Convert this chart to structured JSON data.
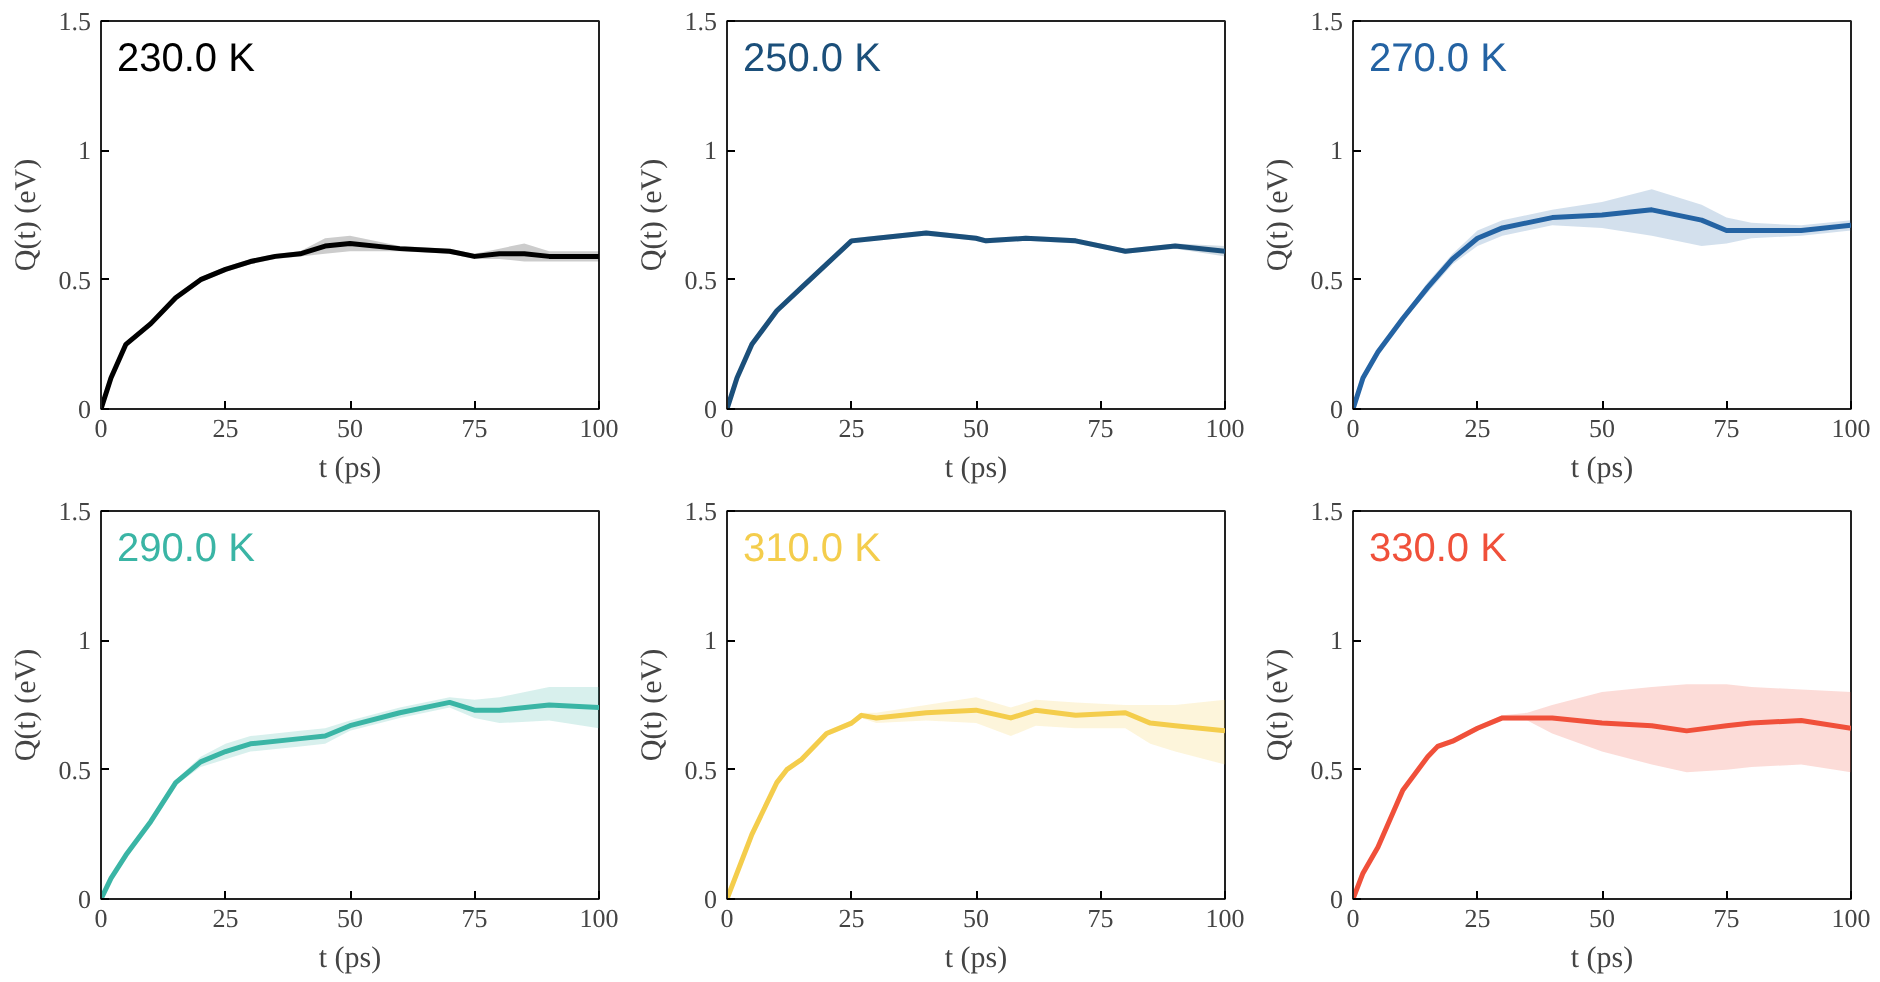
{
  "chart_data": [
    {
      "type": "line",
      "xlabel": "t (ps)",
      "ylabel": "Q(t) (eV)",
      "xlim": [
        0,
        100
      ],
      "ylim": [
        0,
        1.5
      ],
      "xticks": [
        0,
        25,
        50,
        75,
        100
      ],
      "yticks": [
        0,
        0.5,
        1,
        1.5
      ],
      "grid": false,
      "x": [
        0,
        2,
        5,
        10,
        15,
        20,
        25,
        30,
        35,
        40,
        45,
        50,
        60,
        70,
        75,
        80,
        85,
        90,
        100
      ],
      "series": [
        {
          "name": "230.0 K",
          "color": "#000000",
          "values": [
            0,
            0.12,
            0.25,
            0.33,
            0.43,
            0.5,
            0.54,
            0.57,
            0.59,
            0.6,
            0.63,
            0.64,
            0.62,
            0.61,
            0.59,
            0.6,
            0.6,
            0.59,
            0.59
          ],
          "lower": [
            0,
            0.11,
            0.24,
            0.32,
            0.42,
            0.49,
            0.53,
            0.56,
            0.58,
            0.59,
            0.6,
            0.61,
            0.61,
            0.6,
            0.58,
            0.58,
            0.57,
            0.57,
            0.57
          ],
          "upper": [
            0,
            0.13,
            0.26,
            0.34,
            0.44,
            0.51,
            0.55,
            0.58,
            0.6,
            0.61,
            0.66,
            0.67,
            0.63,
            0.62,
            0.6,
            0.62,
            0.64,
            0.61,
            0.61
          ]
        }
      ]
    },
    {
      "type": "line",
      "xlabel": "t (ps)",
      "ylabel": "Q(t) (eV)",
      "xlim": [
        0,
        100
      ],
      "ylim": [
        0,
        1.5
      ],
      "xticks": [
        0,
        25,
        50,
        75,
        100
      ],
      "yticks": [
        0,
        0.5,
        1,
        1.5
      ],
      "grid": false,
      "x": [
        0,
        2,
        5,
        10,
        15,
        20,
        25,
        30,
        40,
        50,
        52,
        60,
        70,
        80,
        90,
        100
      ],
      "series": [
        {
          "name": "250.0 K",
          "color": "#1b4f7a",
          "values": [
            0,
            0.12,
            0.25,
            0.38,
            0.47,
            0.56,
            0.65,
            0.66,
            0.68,
            0.66,
            0.65,
            0.66,
            0.65,
            0.61,
            0.63,
            0.61
          ],
          "lower": [
            0,
            0.11,
            0.24,
            0.37,
            0.46,
            0.55,
            0.64,
            0.65,
            0.67,
            0.65,
            0.64,
            0.65,
            0.64,
            0.6,
            0.62,
            0.59
          ],
          "upper": [
            0,
            0.13,
            0.26,
            0.39,
            0.48,
            0.57,
            0.66,
            0.67,
            0.69,
            0.67,
            0.66,
            0.67,
            0.66,
            0.62,
            0.64,
            0.63
          ]
        }
      ]
    },
    {
      "type": "line",
      "xlabel": "t (ps)",
      "ylabel": "Q(t) (eV)",
      "xlim": [
        0,
        100
      ],
      "ylim": [
        0,
        1.5
      ],
      "xticks": [
        0,
        25,
        50,
        75,
        100
      ],
      "yticks": [
        0,
        0.5,
        1,
        1.5
      ],
      "grid": false,
      "x": [
        0,
        2,
        5,
        10,
        15,
        20,
        25,
        30,
        40,
        50,
        60,
        70,
        75,
        80,
        90,
        100
      ],
      "series": [
        {
          "name": "270.0 K",
          "color": "#2463a3",
          "values": [
            0,
            0.12,
            0.22,
            0.35,
            0.47,
            0.58,
            0.66,
            0.7,
            0.74,
            0.75,
            0.77,
            0.73,
            0.69,
            0.69,
            0.69,
            0.71
          ],
          "lower": [
            0,
            0.11,
            0.21,
            0.34,
            0.45,
            0.56,
            0.63,
            0.67,
            0.71,
            0.7,
            0.67,
            0.63,
            0.64,
            0.66,
            0.67,
            0.69
          ],
          "upper": [
            0,
            0.13,
            0.23,
            0.36,
            0.49,
            0.6,
            0.69,
            0.73,
            0.77,
            0.8,
            0.85,
            0.79,
            0.74,
            0.72,
            0.71,
            0.73
          ]
        }
      ]
    },
    {
      "type": "line",
      "xlabel": "t (ps)",
      "ylabel": "Q(t) (eV)",
      "xlim": [
        0,
        100
      ],
      "ylim": [
        0,
        1.5
      ],
      "xticks": [
        0,
        25,
        50,
        75,
        100
      ],
      "yticks": [
        0,
        0.5,
        1,
        1.5
      ],
      "grid": false,
      "x": [
        0,
        2,
        5,
        10,
        15,
        20,
        25,
        30,
        40,
        45,
        50,
        60,
        70,
        75,
        80,
        90,
        100
      ],
      "series": [
        {
          "name": "290.0 K",
          "color": "#3ab5a5",
          "values": [
            0,
            0.08,
            0.17,
            0.3,
            0.45,
            0.53,
            0.57,
            0.6,
            0.62,
            0.63,
            0.67,
            0.72,
            0.76,
            0.73,
            0.73,
            0.75,
            0.74
          ],
          "lower": [
            0,
            0.07,
            0.16,
            0.29,
            0.44,
            0.51,
            0.54,
            0.57,
            0.59,
            0.6,
            0.65,
            0.7,
            0.74,
            0.7,
            0.68,
            0.69,
            0.66
          ],
          "upper": [
            0,
            0.09,
            0.18,
            0.31,
            0.46,
            0.55,
            0.6,
            0.63,
            0.65,
            0.66,
            0.69,
            0.74,
            0.78,
            0.77,
            0.78,
            0.82,
            0.82
          ]
        }
      ]
    },
    {
      "type": "line",
      "xlabel": "t (ps)",
      "ylabel": "Q(t) (eV)",
      "xlim": [
        0,
        100
      ],
      "ylim": [
        0,
        1.5
      ],
      "xticks": [
        0,
        25,
        50,
        75,
        100
      ],
      "yticks": [
        0,
        0.5,
        1,
        1.5
      ],
      "grid": false,
      "x": [
        0,
        2,
        5,
        10,
        12,
        15,
        20,
        25,
        27,
        30,
        40,
        50,
        57,
        62,
        70,
        80,
        85,
        90,
        100
      ],
      "series": [
        {
          "name": "310.0 K",
          "color": "#f4cd4c",
          "values": [
            0,
            0.1,
            0.25,
            0.45,
            0.5,
            0.54,
            0.64,
            0.68,
            0.71,
            0.7,
            0.72,
            0.73,
            0.7,
            0.73,
            0.71,
            0.72,
            0.68,
            0.67,
            0.65
          ],
          "lower": [
            0,
            0.09,
            0.24,
            0.44,
            0.49,
            0.53,
            0.63,
            0.67,
            0.7,
            0.68,
            0.69,
            0.68,
            0.63,
            0.67,
            0.66,
            0.66,
            0.6,
            0.57,
            0.52
          ],
          "upper": [
            0,
            0.11,
            0.26,
            0.46,
            0.51,
            0.55,
            0.65,
            0.69,
            0.72,
            0.72,
            0.75,
            0.78,
            0.74,
            0.77,
            0.76,
            0.75,
            0.75,
            0.75,
            0.77
          ]
        }
      ]
    },
    {
      "type": "line",
      "xlabel": "t (ps)",
      "ylabel": "Q(t) (eV)",
      "xlim": [
        0,
        100
      ],
      "ylim": [
        0,
        1.5
      ],
      "xticks": [
        0,
        25,
        50,
        75,
        100
      ],
      "yticks": [
        0,
        0.5,
        1,
        1.5
      ],
      "grid": false,
      "x": [
        0,
        2,
        5,
        10,
        15,
        17,
        20,
        25,
        30,
        35,
        40,
        50,
        60,
        67,
        75,
        80,
        90,
        100
      ],
      "series": [
        {
          "name": "330.0 K",
          "color": "#f0503a",
          "values": [
            0,
            0.1,
            0.2,
            0.42,
            0.55,
            0.59,
            0.61,
            0.66,
            0.7,
            0.7,
            0.7,
            0.68,
            0.67,
            0.65,
            0.67,
            0.68,
            0.69,
            0.66
          ],
          "lower": [
            0,
            0.09,
            0.19,
            0.41,
            0.54,
            0.58,
            0.6,
            0.65,
            0.69,
            0.69,
            0.64,
            0.57,
            0.52,
            0.49,
            0.5,
            0.51,
            0.52,
            0.49
          ],
          "upper": [
            0,
            0.11,
            0.21,
            0.43,
            0.56,
            0.6,
            0.62,
            0.67,
            0.71,
            0.72,
            0.75,
            0.8,
            0.82,
            0.83,
            0.83,
            0.82,
            0.81,
            0.8
          ]
        }
      ]
    }
  ]
}
